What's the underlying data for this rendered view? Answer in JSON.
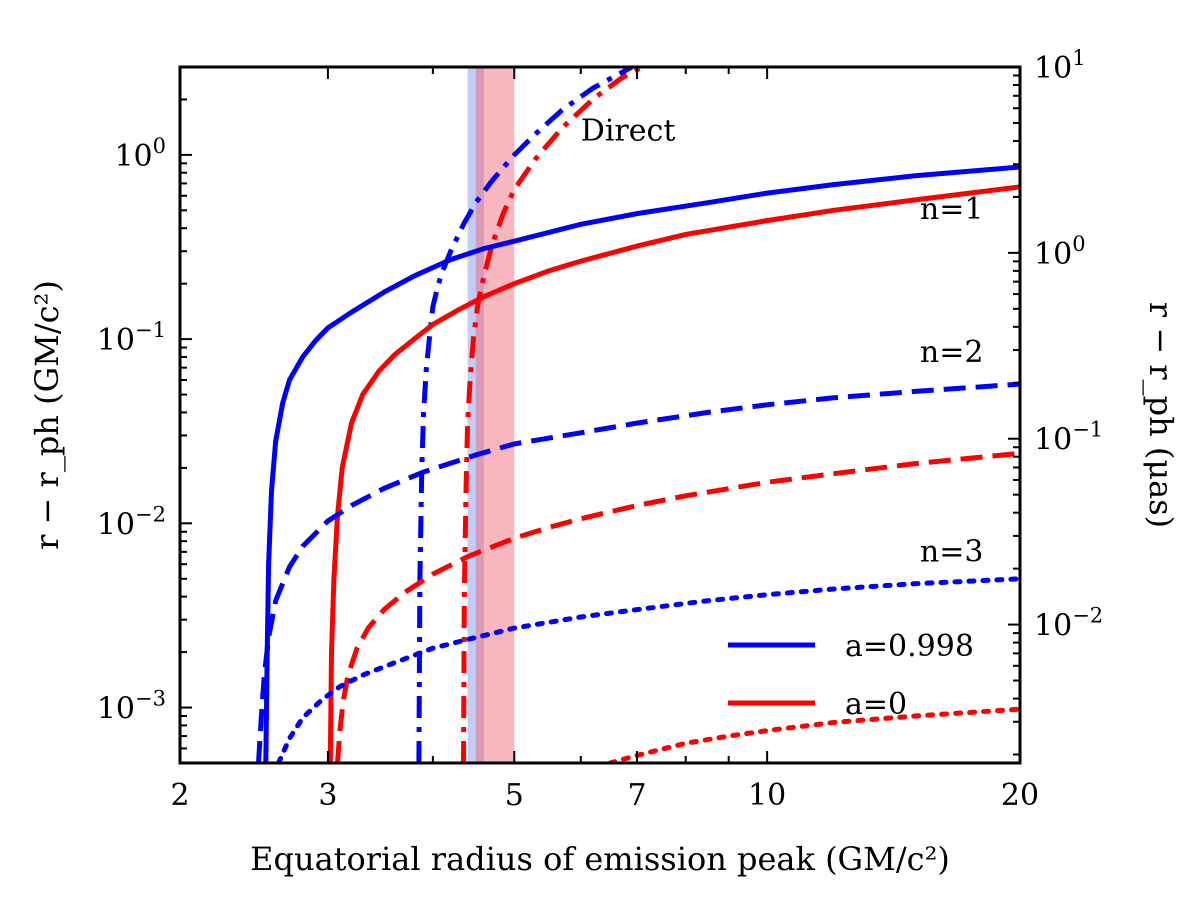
{
  "chart_data": {
    "type": "line",
    "xlabel": "Equatorial radius of emission peak (GM/c²)",
    "ylabel_left": "r − r_ph (GM/c²)",
    "ylabel_right": "r − r_ph (μas)",
    "xscale": "log",
    "yscale": "log",
    "xlim": [
      2,
      20
    ],
    "ylim": [
      0.0005,
      3
    ],
    "ylim_right": [
      0.0018,
      10
    ],
    "x_ticks": [
      {
        "value": 2,
        "label": "2"
      },
      {
        "value": 3,
        "label": "3"
      },
      {
        "value": 5,
        "label": "5"
      },
      {
        "value": 7,
        "label": "7"
      },
      {
        "value": 10,
        "label": "10"
      },
      {
        "value": 20,
        "label": "20"
      }
    ],
    "y_ticks_left": [
      {
        "value": 0.001,
        "base": "10",
        "exp": "−3"
      },
      {
        "value": 0.01,
        "base": "10",
        "exp": "−2"
      },
      {
        "value": 0.1,
        "base": "10",
        "exp": "−1"
      },
      {
        "value": 1,
        "base": "10",
        "exp": "0"
      }
    ],
    "y_ticks_right": [
      {
        "value": 0.01,
        "base": "10",
        "exp": "−2"
      },
      {
        "value": 0.1,
        "base": "10",
        "exp": "−1"
      },
      {
        "value": 1,
        "base": "10",
        "exp": "0"
      },
      {
        "value": 10,
        "base": "10",
        "exp": "1"
      }
    ],
    "bands": [
      {
        "x0": 4.4,
        "x1": 4.6,
        "color": "#7b8fe8",
        "opacity": 0.45
      },
      {
        "x0": 4.5,
        "x1": 5.0,
        "color": "#f06070",
        "opacity": 0.45
      }
    ],
    "annotations": [
      {
        "text": "Direct",
        "x": 6.0,
        "y": 1.2
      },
      {
        "text": "n=1",
        "x": 15.2,
        "y": 0.45
      },
      {
        "text": "n=2",
        "x": 15.2,
        "y": 0.075
      },
      {
        "text": "n=3",
        "x": 15.2,
        "y": 0.0062
      }
    ],
    "legend": {
      "position": "bottom-right",
      "entries": [
        {
          "label": "a=0.998",
          "color": "#0000ff"
        },
        {
          "label": "a=0",
          "color": "#ff0000"
        }
      ]
    },
    "series": [
      {
        "name": "a=0.998 Direct",
        "color": "#0000ff",
        "style": "dashdot",
        "x": [
          3.85,
          3.86,
          3.88,
          3.9,
          3.93,
          3.97,
          4.0,
          4.05,
          4.1,
          4.2,
          4.35,
          4.5,
          4.7,
          5.0,
          5.3,
          5.7,
          6.2,
          6.9
        ],
        "y": [
          0.0005,
          0.005,
          0.02,
          0.04,
          0.07,
          0.11,
          0.15,
          0.19,
          0.23,
          0.3,
          0.42,
          0.55,
          0.72,
          1.0,
          1.3,
          1.75,
          2.3,
          3.0
        ]
      },
      {
        "name": "a=0 Direct",
        "color": "#ff0000",
        "style": "dashdot",
        "x": [
          4.35,
          4.36,
          4.38,
          4.4,
          4.43,
          4.47,
          4.52,
          4.6,
          4.7,
          4.85,
          5.0,
          5.3,
          5.7,
          6.2,
          6.7,
          7.1
        ],
        "y": [
          0.0005,
          0.004,
          0.015,
          0.035,
          0.06,
          0.1,
          0.15,
          0.22,
          0.32,
          0.48,
          0.65,
          0.95,
          1.4,
          2.0,
          2.6,
          3.0
        ]
      },
      {
        "name": "a=0.998 n=1",
        "color": "#0000ff",
        "style": "solid",
        "x": [
          2.53,
          2.54,
          2.55,
          2.57,
          2.6,
          2.65,
          2.7,
          2.8,
          2.9,
          3.0,
          3.2,
          3.5,
          3.8,
          4.2,
          4.6,
          5.0,
          6.0,
          7.0,
          8.5,
          10,
          12,
          15,
          20
        ],
        "y": [
          0.0005,
          0.002,
          0.006,
          0.015,
          0.028,
          0.045,
          0.06,
          0.08,
          0.098,
          0.115,
          0.14,
          0.18,
          0.22,
          0.27,
          0.31,
          0.34,
          0.42,
          0.48,
          0.55,
          0.62,
          0.69,
          0.77,
          0.86
        ]
      },
      {
        "name": "a=0 n=1",
        "color": "#ff0000",
        "style": "solid",
        "x": [
          3.02,
          3.03,
          3.05,
          3.08,
          3.12,
          3.2,
          3.3,
          3.45,
          3.6,
          3.8,
          4.0,
          4.3,
          4.6,
          5.0,
          5.5,
          6.0,
          7.0,
          8.0,
          10,
          12,
          15,
          20
        ],
        "y": [
          0.0005,
          0.002,
          0.005,
          0.011,
          0.02,
          0.035,
          0.05,
          0.067,
          0.082,
          0.1,
          0.12,
          0.145,
          0.17,
          0.2,
          0.235,
          0.265,
          0.32,
          0.37,
          0.44,
          0.5,
          0.57,
          0.67
        ]
      },
      {
        "name": "a=0.998 n=2",
        "color": "#0000ff",
        "style": "dashed",
        "x": [
          2.48,
          2.5,
          2.52,
          2.55,
          2.6,
          2.7,
          2.8,
          3.0,
          3.2,
          3.5,
          3.9,
          4.5,
          5.0,
          6.0,
          7.0,
          8.5,
          10,
          12,
          15,
          20
        ],
        "y": [
          0.0005,
          0.0009,
          0.0015,
          0.0024,
          0.0038,
          0.0058,
          0.0075,
          0.0103,
          0.0125,
          0.0155,
          0.019,
          0.0235,
          0.027,
          0.031,
          0.035,
          0.04,
          0.044,
          0.048,
          0.052,
          0.057
        ]
      },
      {
        "name": "a=0 n=2",
        "color": "#ff0000",
        "style": "dashed",
        "x": [
          3.08,
          3.1,
          3.13,
          3.17,
          3.25,
          3.35,
          3.5,
          3.7,
          4.0,
          4.4,
          5.0,
          5.5,
          6.0,
          7.0,
          8.0,
          10,
          12,
          15,
          20
        ],
        "y": [
          0.0005,
          0.00075,
          0.0011,
          0.0015,
          0.0021,
          0.0027,
          0.0034,
          0.0042,
          0.0053,
          0.0066,
          0.0083,
          0.0095,
          0.0106,
          0.0125,
          0.0141,
          0.0167,
          0.0186,
          0.0211,
          0.024
        ]
      },
      {
        "name": "a=0.998 n=3",
        "color": "#0000ff",
        "style": "dotted",
        "x": [
          2.62,
          2.7,
          2.8,
          2.95,
          3.1,
          3.3,
          3.6,
          4.0,
          4.5,
          5.0,
          6.0,
          7.0,
          8.5,
          10,
          12,
          15,
          20
        ],
        "y": [
          0.0005,
          0.00068,
          0.00088,
          0.0011,
          0.0013,
          0.0015,
          0.00175,
          0.0021,
          0.0024,
          0.0027,
          0.0031,
          0.0034,
          0.0038,
          0.0041,
          0.0044,
          0.0047,
          0.005
        ]
      },
      {
        "name": "a=0 n=3",
        "color": "#ff0000",
        "style": "dotted",
        "x": [
          6.5,
          7.0,
          8.0,
          9.0,
          10,
          12,
          15,
          20
        ],
        "y": [
          0.0005,
          0.00055,
          0.00064,
          0.0007,
          0.00075,
          0.00083,
          0.0009,
          0.00098
        ]
      }
    ]
  }
}
